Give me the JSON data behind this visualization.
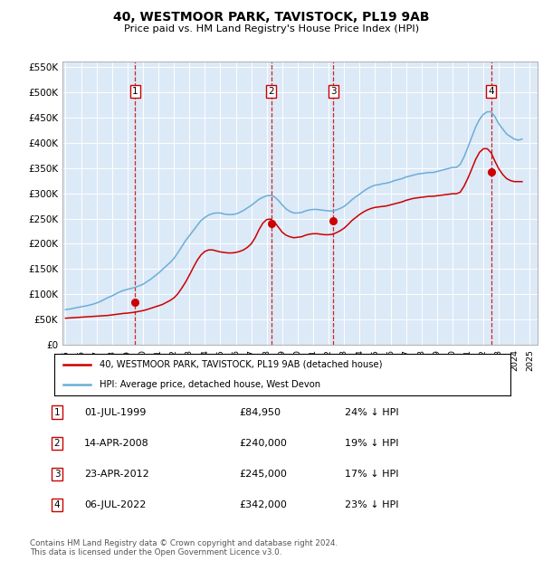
{
  "title": "40, WESTMOOR PARK, TAVISTOCK, PL19 9AB",
  "subtitle": "Price paid vs. HM Land Registry's House Price Index (HPI)",
  "plot_bg_color": "#dce9f7",
  "ylim": [
    0,
    560000
  ],
  "yticks": [
    0,
    50000,
    100000,
    150000,
    200000,
    250000,
    300000,
    350000,
    400000,
    450000,
    500000,
    550000
  ],
  "ytick_labels": [
    "£0",
    "£50K",
    "£100K",
    "£150K",
    "£200K",
    "£250K",
    "£300K",
    "£350K",
    "£400K",
    "£450K",
    "£500K",
    "£550K"
  ],
  "xlim_start": 1994.8,
  "xlim_end": 2025.5,
  "xticks": [
    1995,
    1996,
    1997,
    1998,
    1999,
    2000,
    2001,
    2002,
    2003,
    2004,
    2005,
    2006,
    2007,
    2008,
    2009,
    2010,
    2011,
    2012,
    2013,
    2014,
    2015,
    2016,
    2017,
    2018,
    2019,
    2020,
    2021,
    2022,
    2023,
    2024,
    2025
  ],
  "hpi_color": "#6baed6",
  "price_color": "#cc0000",
  "dashed_line_color": "#cc0000",
  "numbered_box_color": "#cc0000",
  "sales": [
    {
      "num": 1,
      "date_str": "01-JUL-1999",
      "year": 1999.5,
      "price": 84950,
      "hpi_pct": "24% ↓ HPI"
    },
    {
      "num": 2,
      "date_str": "14-APR-2008",
      "year": 2008.28,
      "price": 240000,
      "hpi_pct": "19% ↓ HPI"
    },
    {
      "num": 3,
      "date_str": "23-APR-2012",
      "year": 2012.3,
      "price": 245000,
      "hpi_pct": "17% ↓ HPI"
    },
    {
      "num": 4,
      "date_str": "06-JUL-2022",
      "year": 2022.51,
      "price": 342000,
      "hpi_pct": "23% ↓ HPI"
    }
  ],
  "legend_label_price": "40, WESTMOOR PARK, TAVISTOCK, PL19 9AB (detached house)",
  "legend_label_hpi": "HPI: Average price, detached house, West Devon",
  "footer": "Contains HM Land Registry data © Crown copyright and database right 2024.\nThis data is licensed under the Open Government Licence v3.0.",
  "hpi_data_x": [
    1995.0,
    1995.25,
    1995.5,
    1995.75,
    1996.0,
    1996.25,
    1996.5,
    1996.75,
    1997.0,
    1997.25,
    1997.5,
    1997.75,
    1998.0,
    1998.25,
    1998.5,
    1998.75,
    1999.0,
    1999.25,
    1999.5,
    1999.75,
    2000.0,
    2000.25,
    2000.5,
    2000.75,
    2001.0,
    2001.25,
    2001.5,
    2001.75,
    2002.0,
    2002.25,
    2002.5,
    2002.75,
    2003.0,
    2003.25,
    2003.5,
    2003.75,
    2004.0,
    2004.25,
    2004.5,
    2004.75,
    2005.0,
    2005.25,
    2005.5,
    2005.75,
    2006.0,
    2006.25,
    2006.5,
    2006.75,
    2007.0,
    2007.25,
    2007.5,
    2007.75,
    2008.0,
    2008.25,
    2008.5,
    2008.75,
    2009.0,
    2009.25,
    2009.5,
    2009.75,
    2010.0,
    2010.25,
    2010.5,
    2010.75,
    2011.0,
    2011.25,
    2011.5,
    2011.75,
    2012.0,
    2012.25,
    2012.5,
    2012.75,
    2013.0,
    2013.25,
    2013.5,
    2013.75,
    2014.0,
    2014.25,
    2014.5,
    2014.75,
    2015.0,
    2015.25,
    2015.5,
    2015.75,
    2016.0,
    2016.25,
    2016.5,
    2016.75,
    2017.0,
    2017.25,
    2017.5,
    2017.75,
    2018.0,
    2018.25,
    2018.5,
    2018.75,
    2019.0,
    2019.25,
    2019.5,
    2019.75,
    2020.0,
    2020.25,
    2020.5,
    2020.75,
    2021.0,
    2021.25,
    2021.5,
    2021.75,
    2022.0,
    2022.25,
    2022.5,
    2022.75,
    2023.0,
    2023.25,
    2023.5,
    2023.75,
    2024.0,
    2024.25,
    2024.5
  ],
  "hpi_data_y": [
    70000,
    71000,
    72500,
    74000,
    75500,
    77000,
    78500,
    80500,
    83000,
    86000,
    90000,
    94000,
    97000,
    101000,
    105000,
    108000,
    110000,
    112000,
    114000,
    117000,
    120000,
    125000,
    130000,
    136000,
    142000,
    149000,
    156000,
    163000,
    171000,
    182000,
    194000,
    206000,
    216000,
    226000,
    236000,
    246000,
    252000,
    257000,
    260000,
    261000,
    261000,
    259000,
    258000,
    258000,
    259000,
    262000,
    266000,
    271000,
    276000,
    282000,
    288000,
    292000,
    295000,
    296000,
    293000,
    286000,
    277000,
    269000,
    264000,
    261000,
    261000,
    262000,
    265000,
    267000,
    268000,
    268000,
    267000,
    266000,
    265000,
    265000,
    267000,
    270000,
    274000,
    280000,
    287000,
    293000,
    298000,
    304000,
    309000,
    313000,
    316000,
    317000,
    319000,
    320000,
    322000,
    325000,
    327000,
    329000,
    332000,
    334000,
    336000,
    338000,
    339000,
    340000,
    341000,
    341000,
    343000,
    345000,
    347000,
    349000,
    351000,
    351000,
    357000,
    372000,
    391000,
    411000,
    431000,
    446000,
    456000,
    461000,
    461000,
    451000,
    437000,
    427000,
    417000,
    412000,
    407000,
    405000,
    407000
  ],
  "price_data_x": [
    1995.0,
    1995.25,
    1995.5,
    1995.75,
    1996.0,
    1996.25,
    1996.5,
    1996.75,
    1997.0,
    1997.25,
    1997.5,
    1997.75,
    1998.0,
    1998.25,
    1998.5,
    1998.75,
    1999.0,
    1999.25,
    1999.5,
    1999.75,
    2000.0,
    2000.25,
    2000.5,
    2000.75,
    2001.0,
    2001.25,
    2001.5,
    2001.75,
    2002.0,
    2002.25,
    2002.5,
    2002.75,
    2003.0,
    2003.25,
    2003.5,
    2003.75,
    2004.0,
    2004.25,
    2004.5,
    2004.75,
    2005.0,
    2005.25,
    2005.5,
    2005.75,
    2006.0,
    2006.25,
    2006.5,
    2006.75,
    2007.0,
    2007.25,
    2007.5,
    2007.75,
    2008.0,
    2008.25,
    2008.5,
    2008.75,
    2009.0,
    2009.25,
    2009.5,
    2009.75,
    2010.0,
    2010.25,
    2010.5,
    2010.75,
    2011.0,
    2011.25,
    2011.5,
    2011.75,
    2012.0,
    2012.25,
    2012.5,
    2012.75,
    2013.0,
    2013.25,
    2013.5,
    2013.75,
    2014.0,
    2014.25,
    2014.5,
    2014.75,
    2015.0,
    2015.25,
    2015.5,
    2015.75,
    2016.0,
    2016.25,
    2016.5,
    2016.75,
    2017.0,
    2017.25,
    2017.5,
    2017.75,
    2018.0,
    2018.25,
    2018.5,
    2018.75,
    2019.0,
    2019.25,
    2019.5,
    2019.75,
    2020.0,
    2020.25,
    2020.5,
    2020.75,
    2021.0,
    2021.25,
    2021.5,
    2021.75,
    2022.0,
    2022.25,
    2022.5,
    2022.75,
    2023.0,
    2023.25,
    2023.5,
    2023.75,
    2024.0,
    2024.25,
    2024.5
  ],
  "price_data_y": [
    53000,
    53500,
    54000,
    54500,
    55000,
    55500,
    56000,
    56500,
    57000,
    57500,
    58000,
    58500,
    59500,
    60500,
    61500,
    62500,
    63000,
    64000,
    65000,
    66500,
    68000,
    70000,
    72500,
    75000,
    77500,
    80000,
    84000,
    88000,
    93000,
    101000,
    112000,
    124000,
    138000,
    153000,
    167000,
    178000,
    185000,
    188000,
    188000,
    186000,
    184000,
    183000,
    182000,
    182000,
    183000,
    185000,
    188000,
    193000,
    200000,
    212000,
    228000,
    241000,
    248000,
    249000,
    243000,
    233000,
    223000,
    217000,
    214000,
    212000,
    213000,
    214000,
    217000,
    219000,
    220000,
    220000,
    219000,
    218000,
    218000,
    219000,
    222000,
    226000,
    231000,
    238000,
    246000,
    252000,
    258000,
    263000,
    267000,
    270000,
    272000,
    273000,
    274000,
    275000,
    277000,
    279000,
    281000,
    283000,
    286000,
    288000,
    290000,
    291000,
    292000,
    293000,
    294000,
    294000,
    295000,
    296000,
    297000,
    298000,
    299000,
    299000,
    302000,
    314000,
    330000,
    348000,
    367000,
    381000,
    388000,
    388000,
    380000,
    363000,
    348000,
    337000,
    329000,
    325000,
    323000,
    323000,
    323000
  ]
}
